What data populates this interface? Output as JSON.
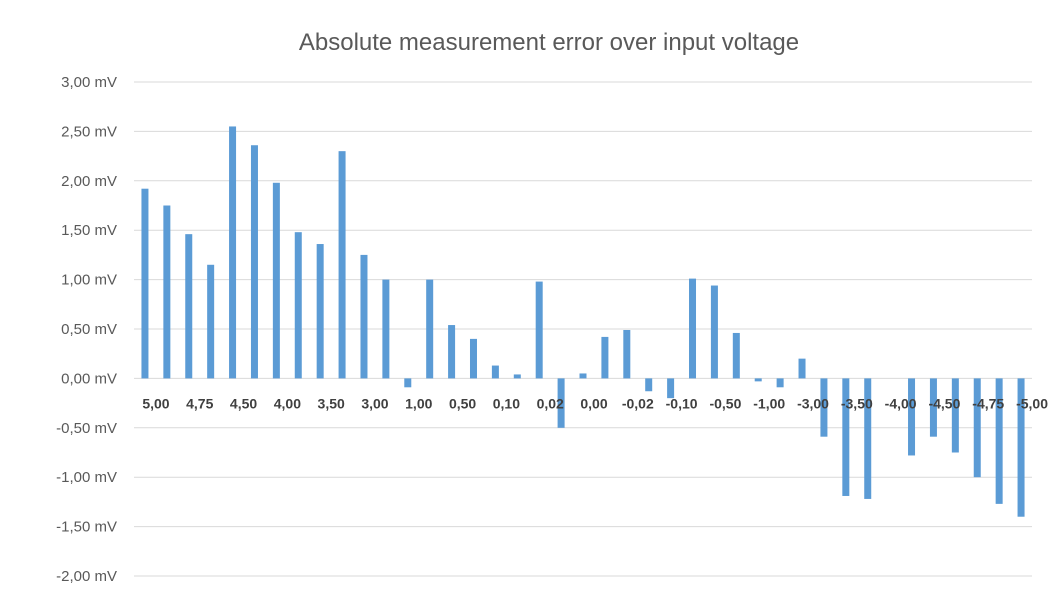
{
  "chart_data": {
    "type": "bar",
    "title": "Absolute measurement error over input voltage",
    "xlabel": "",
    "ylabel": "",
    "ylim": [
      -2.0,
      3.0
    ],
    "yticks": [
      {
        "value": 3.0,
        "label": "3,00 mV"
      },
      {
        "value": 2.5,
        "label": "2,50 mV"
      },
      {
        "value": 2.0,
        "label": "2,00 mV"
      },
      {
        "value": 1.5,
        "label": "1,50 mV"
      },
      {
        "value": 1.0,
        "label": "1,00 mV"
      },
      {
        "value": 0.5,
        "label": "0,50 mV"
      },
      {
        "value": 0.0,
        "label": "0,00 mV"
      },
      {
        "value": -0.5,
        "label": "-0,50 mV"
      },
      {
        "value": -1.0,
        "label": "-1,00 mV"
      },
      {
        "value": -1.5,
        "label": "-1,50 mV"
      },
      {
        "value": -2.0,
        "label": "-2,00 mV"
      }
    ],
    "grid": true,
    "legend": "none",
    "bar_color": "#5b9bd5",
    "categories": [
      "5,00",
      "",
      "4,75",
      "",
      "4,50",
      "",
      "4,00",
      "",
      "3,50",
      "",
      "3,00",
      "",
      "1,00",
      "",
      "0,50",
      "",
      "0,10",
      "",
      "0,02",
      "",
      "0,00",
      "",
      "-0,02",
      "",
      "-0,10",
      "",
      "-0,50",
      "",
      "-1,00",
      "",
      "-3,00",
      "",
      "-3,50",
      "",
      "-4,00",
      "",
      "-4,50",
      "",
      "-4,75",
      "",
      "-5,00"
    ],
    "values": [
      1.92,
      1.75,
      1.46,
      1.15,
      2.55,
      2.36,
      1.98,
      1.48,
      1.36,
      2.3,
      1.25,
      1.0,
      -0.09,
      1.0,
      0.54,
      0.4,
      0.13,
      0.04,
      0.98,
      -0.5,
      0.05,
      0.42,
      0.49,
      -0.13,
      -0.2,
      1.01,
      0.94,
      0.46,
      -0.03,
      -0.09,
      0.2,
      -0.59,
      -1.19,
      -1.22,
      0.0,
      -0.78,
      -0.59,
      -0.75,
      -1.0,
      -1.27,
      -1.4
    ]
  }
}
